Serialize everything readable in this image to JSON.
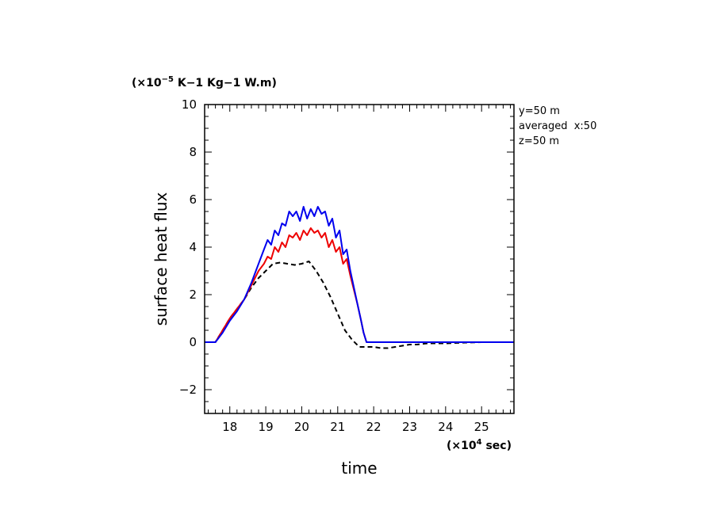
{
  "chart_data": {
    "type": "line",
    "xlabel": "time",
    "ylabel": "surface heat flux",
    "y_unit": {
      "prefix": "(×10",
      "exp": "−5",
      "suffix": " K−1 Kg−1 W.m)"
    },
    "x_unit": {
      "prefix": "(×10",
      "exp": "4",
      "suffix": " sec)"
    },
    "xlim": [
      17.3,
      25.9
    ],
    "ylim": [
      -3,
      10
    ],
    "x_ticks": [
      18,
      19,
      20,
      21,
      22,
      23,
      24,
      25
    ],
    "y_ticks": [
      -2,
      0,
      2,
      4,
      6,
      8,
      10
    ],
    "y_tick_labels": [
      "−2",
      "0",
      "2",
      "4",
      "6",
      "8",
      "10"
    ],
    "annotations": [
      "y=50 m",
      "averaged  x:50",
      "z=50 m"
    ],
    "grid": false,
    "series": [
      {
        "color": "#0000ee",
        "style": "solid",
        "x": [
          17.3,
          17.6,
          17.8,
          18.0,
          18.2,
          18.4,
          18.6,
          18.8,
          18.95,
          19.05,
          19.15,
          19.25,
          19.35,
          19.45,
          19.55,
          19.65,
          19.75,
          19.85,
          19.95,
          20.05,
          20.15,
          20.25,
          20.35,
          20.45,
          20.55,
          20.65,
          20.75,
          20.85,
          20.95,
          21.05,
          21.15,
          21.25,
          21.35,
          21.45,
          21.55,
          21.65,
          21.72,
          21.8,
          22.0,
          23.0,
          24.0,
          25.0,
          25.9
        ],
        "y": [
          0,
          0,
          0.4,
          0.9,
          1.3,
          1.8,
          2.5,
          3.3,
          3.9,
          4.3,
          4.1,
          4.7,
          4.5,
          5.0,
          4.9,
          5.5,
          5.3,
          5.5,
          5.1,
          5.7,
          5.2,
          5.6,
          5.3,
          5.7,
          5.4,
          5.5,
          4.9,
          5.2,
          4.4,
          4.7,
          3.7,
          3.9,
          3.0,
          2.3,
          1.6,
          0.9,
          0.4,
          0,
          0,
          0,
          0,
          0,
          0
        ]
      },
      {
        "color": "#ee0000",
        "style": "solid",
        "x": [
          17.3,
          17.6,
          17.8,
          18.0,
          18.2,
          18.4,
          18.6,
          18.8,
          18.95,
          19.05,
          19.15,
          19.25,
          19.35,
          19.45,
          19.55,
          19.65,
          19.75,
          19.85,
          19.95,
          20.05,
          20.15,
          20.25,
          20.35,
          20.45,
          20.55,
          20.65,
          20.75,
          20.85,
          20.95,
          21.05,
          21.15,
          21.25,
          21.35,
          21.45,
          21.55,
          21.65,
          21.72,
          21.8,
          22.0,
          23.0,
          24.0,
          25.0,
          25.9
        ],
        "y": [
          0,
          0,
          0.5,
          1.0,
          1.4,
          1.8,
          2.4,
          3.0,
          3.3,
          3.6,
          3.5,
          4.0,
          3.8,
          4.2,
          4.0,
          4.5,
          4.4,
          4.6,
          4.3,
          4.7,
          4.5,
          4.8,
          4.6,
          4.7,
          4.4,
          4.6,
          4.0,
          4.3,
          3.8,
          4.0,
          3.3,
          3.5,
          2.8,
          2.2,
          1.6,
          0.9,
          0.4,
          0,
          0,
          0,
          0,
          0,
          0
        ]
      },
      {
        "color": "#000000",
        "style": "dashed",
        "x": [
          17.3,
          17.6,
          17.8,
          18.0,
          18.2,
          18.4,
          18.6,
          18.8,
          19.0,
          19.2,
          19.4,
          19.6,
          19.8,
          20.0,
          20.2,
          20.4,
          20.6,
          20.8,
          21.0,
          21.2,
          21.4,
          21.6,
          21.8,
          22.0,
          22.2,
          22.4,
          22.6,
          22.8,
          23.0,
          23.2,
          23.5,
          24.0,
          24.5,
          25.0,
          25.5,
          25.9
        ],
        "y": [
          0,
          0,
          0.5,
          1.0,
          1.4,
          1.8,
          2.3,
          2.7,
          3.0,
          3.3,
          3.35,
          3.3,
          3.25,
          3.3,
          3.4,
          3.0,
          2.5,
          1.9,
          1.2,
          0.5,
          0.1,
          -0.2,
          -0.2,
          -0.2,
          -0.25,
          -0.25,
          -0.2,
          -0.15,
          -0.1,
          -0.1,
          -0.05,
          -0.05,
          -0.02,
          0,
          0,
          0
        ]
      }
    ]
  }
}
